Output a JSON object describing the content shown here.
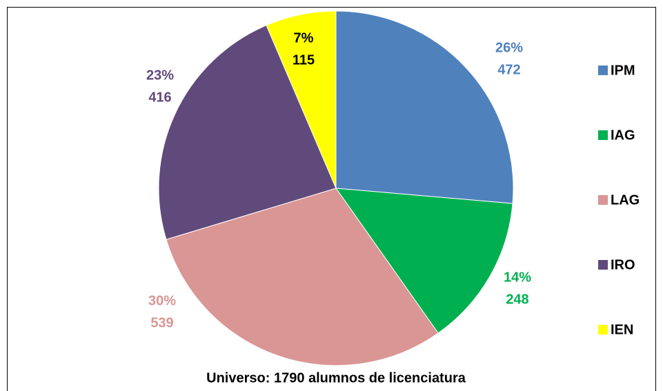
{
  "chart_data": {
    "type": "pie",
    "categories": [
      "IPM",
      "IAG",
      "LAG",
      "IRO",
      "IEN"
    ],
    "values": [
      472,
      248,
      539,
      416,
      115
    ],
    "percent_labels": [
      "26%",
      "14%",
      "30%",
      "23%",
      "7%"
    ],
    "colors": [
      "#4f81bd",
      "#00b050",
      "#d99694",
      "#604a7b",
      "#ffff00"
    ],
    "label_colors": [
      "#4f81bd",
      "#00b050",
      "#d99694",
      "#604a7b",
      "#000000"
    ],
    "annotation": "Universo:  1790 alumnos de licenciatura",
    "legend": "right"
  }
}
